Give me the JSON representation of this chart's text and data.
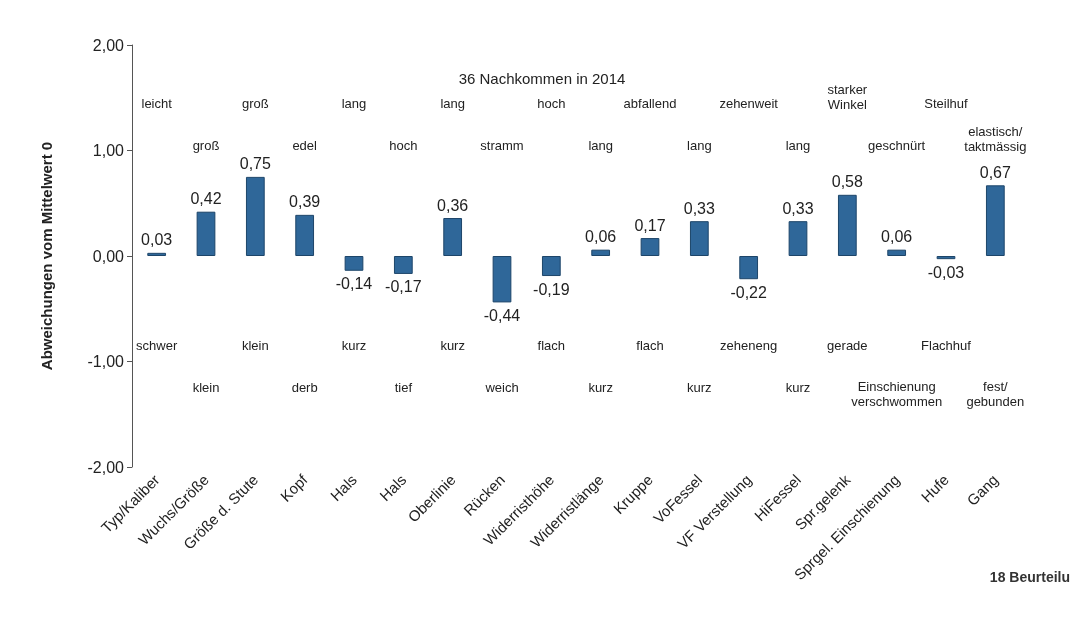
{
  "chart_data": {
    "type": "bar",
    "title": "36 Nachkommen in 2014",
    "ylabel": "Abweichungen vom Mittelwert 0",
    "categories": [
      "Typ/Kaliber",
      "Wuchs/Größe",
      "Größe d. Stute",
      "Kopf",
      "Hals",
      "Hals",
      "Oberlinie",
      "Rücken",
      "Widerristhöhe",
      "Widerristlänge",
      "Kruppe",
      "VoFessel",
      "VF Verstellung",
      "HiFessel",
      "Spr.gelenk",
      "Sprgel. Einschienung",
      "Hufe",
      "Gang"
    ],
    "values": [
      0.03,
      0.42,
      0.75,
      0.39,
      -0.14,
      -0.17,
      0.36,
      -0.44,
      -0.19,
      0.06,
      0.17,
      0.33,
      -0.22,
      0.33,
      0.58,
      0.06,
      -0.03,
      0.67
    ],
    "value_labels": [
      "0,03",
      "0,42",
      "0,75",
      "0,39",
      "-0,14",
      "-0,17",
      "0,36",
      "-0,44",
      "-0,19",
      "0,06",
      "0,17",
      "0,33",
      "-0,22",
      "0,33",
      "0,58",
      "0,06",
      "-0,03",
      "0,67"
    ],
    "color": "#2f6799",
    "ylim": [
      -2,
      2
    ],
    "yticks": [
      {
        "value": -2,
        "label": "-2,00"
      },
      {
        "value": -1,
        "label": "-1,00"
      },
      {
        "value": 0,
        "label": "0,00"
      },
      {
        "value": 1,
        "label": "1,00"
      },
      {
        "value": 2,
        "label": "2,00"
      }
    ],
    "grid": false,
    "annotations": [
      "leicht",
      "groß",
      "groß",
      "edel",
      "lang",
      "hoch",
      "lang",
      "stramm",
      "hoch",
      "lang",
      "abfallend",
      "lang",
      "zehenweit",
      "lang",
      "starker\nWinkel",
      "geschnürt",
      "Steilhuf",
      "elastisch/\ntaktmässig",
      "schwer",
      "klein",
      "klein",
      "derb",
      "kurz",
      "tief",
      "kurz",
      "weich",
      "flach",
      "kurz",
      "flach",
      "kurz",
      "zeheneng",
      "kurz",
      "gerade",
      "Einschienung\nverschwommen",
      "Flachhuf",
      "fest/\ngebunden",
      "18 Beurteilu"
    ]
  }
}
